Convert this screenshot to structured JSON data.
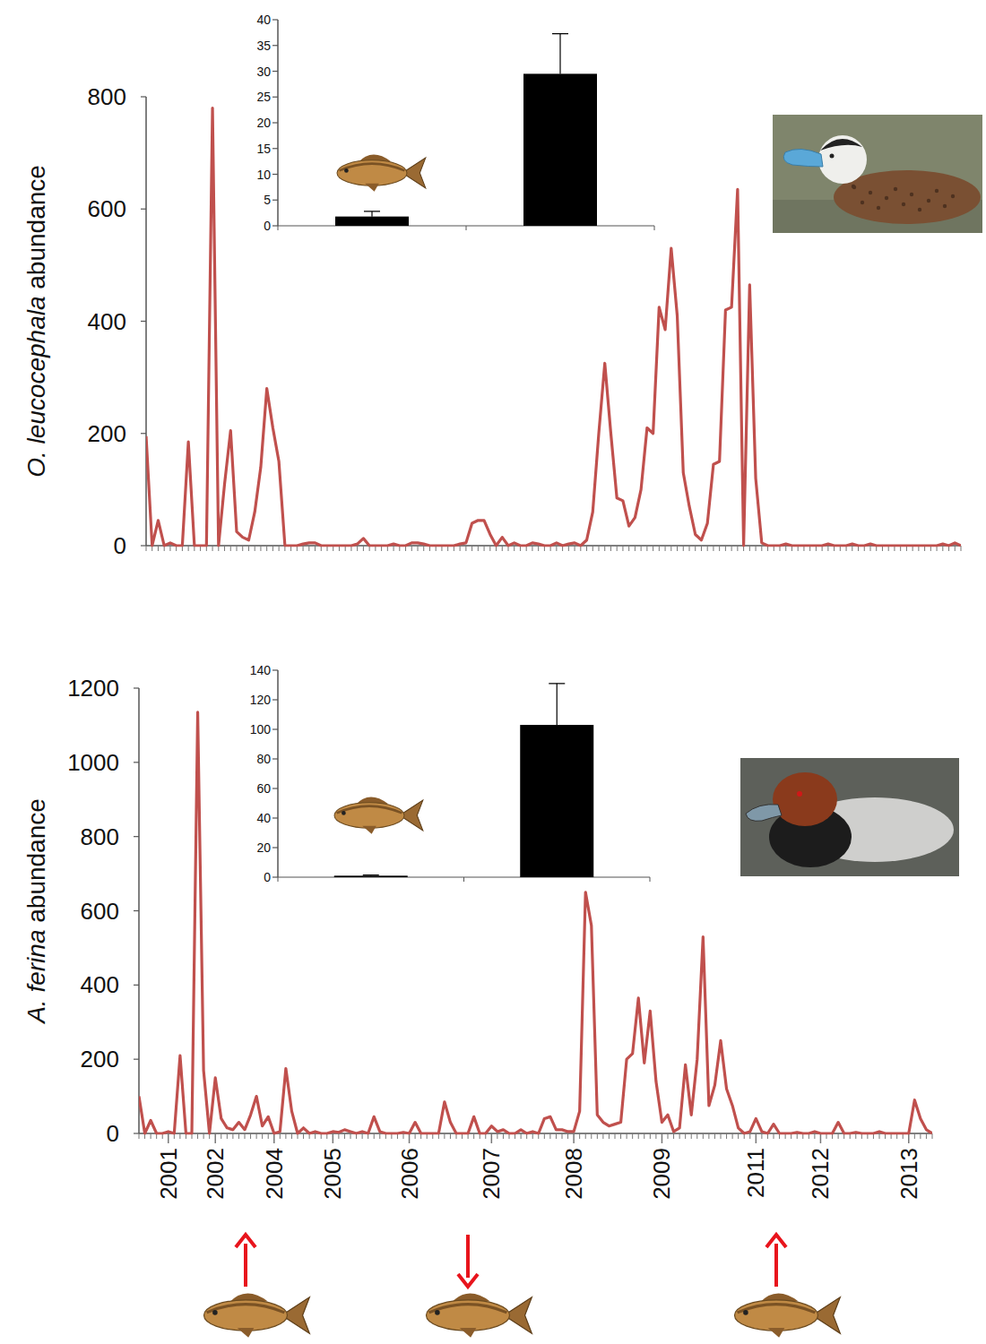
{
  "chart_data": [
    {
      "type": "line",
      "y_label": "O. leucocephala abundance",
      "color": "#c0504d",
      "tick_labels": "y",
      "ylim": [
        0,
        800
      ],
      "yticks": [
        0,
        200,
        400,
        600,
        800
      ],
      "categories": [
        null,
        null,
        null,
        null,
        null,
        null,
        null,
        null,
        null,
        null,
        null,
        null,
        null,
        null,
        null,
        null,
        null,
        null,
        null,
        null,
        null,
        null,
        null,
        null,
        null,
        null,
        null,
        null,
        null,
        null,
        null,
        null,
        null,
        null,
        null,
        null,
        null,
        null,
        null,
        null,
        null,
        null,
        null,
        null,
        null,
        null,
        null,
        null,
        null,
        null,
        null,
        null,
        null,
        null,
        null,
        null,
        null,
        null,
        null,
        null,
        null,
        null,
        null,
        null,
        null,
        null,
        null,
        null,
        null,
        null,
        null,
        null,
        null,
        null,
        null,
        null,
        null,
        null,
        null,
        null,
        null,
        null,
        null,
        null,
        null,
        null,
        null,
        null,
        null,
        null,
        null,
        null,
        null,
        null,
        null,
        null,
        null,
        null,
        null,
        null,
        null,
        null,
        null,
        null,
        null,
        null,
        null,
        null,
        null,
        null,
        null,
        null,
        null,
        null,
        null,
        null,
        null,
        null,
        null,
        null,
        null,
        null,
        null,
        null,
        null,
        null,
        null,
        null,
        null,
        null,
        null,
        null,
        null,
        null,
        null,
        null
      ],
      "values": [
        195,
        0,
        45,
        0,
        5,
        0,
        0,
        185,
        0,
        0,
        0,
        780,
        0,
        110,
        205,
        25,
        15,
        10,
        60,
        140,
        280,
        210,
        150,
        0,
        0,
        0,
        3,
        5,
        5,
        0,
        0,
        0,
        0,
        0,
        0,
        3,
        13,
        0,
        0,
        0,
        0,
        3,
        0,
        0,
        5,
        5,
        3,
        0,
        0,
        0,
        0,
        0,
        3,
        5,
        40,
        45,
        45,
        20,
        0,
        15,
        0,
        5,
        0,
        0,
        5,
        3,
        0,
        0,
        5,
        0,
        3,
        5,
        0,
        10,
        60,
        200,
        325,
        200,
        85,
        80,
        35,
        50,
        100,
        210,
        200,
        425,
        385,
        530,
        410,
        130,
        70,
        20,
        10,
        40,
        145,
        150,
        420,
        425,
        635,
        0,
        465,
        120,
        5,
        0,
        0,
        0,
        3,
        0,
        0,
        0,
        0,
        0,
        0,
        3,
        0,
        0,
        0,
        3,
        0,
        0,
        3,
        0,
        0,
        0,
        0,
        0,
        0,
        0,
        0,
        0,
        0,
        0,
        3,
        0,
        5,
        0
      ]
    },
    {
      "type": "bar",
      "color": "#000000",
      "tick_labels": "y",
      "categories": [
        null,
        null
      ],
      "values": [
        1.8,
        29.5
      ],
      "errors": [
        1.0,
        7.8
      ],
      "ylim": [
        0,
        40
      ],
      "yticks": [
        0,
        5,
        10,
        15,
        20,
        25,
        30,
        35,
        40
      ]
    },
    {
      "type": "line",
      "y_label": "A. ferina abundance",
      "color": "#c0504d",
      "ylim": [
        0,
        1200
      ],
      "yticks": [
        0,
        200,
        400,
        600,
        800,
        1000,
        1200
      ],
      "categories": [
        null,
        null,
        null,
        null,
        null,
        "2001",
        null,
        null,
        null,
        null,
        null,
        null,
        null,
        "2002",
        null,
        null,
        null,
        null,
        null,
        null,
        null,
        null,
        null,
        "2004",
        null,
        null,
        null,
        null,
        null,
        null,
        null,
        null,
        null,
        "2005",
        null,
        null,
        null,
        null,
        null,
        null,
        null,
        null,
        null,
        null,
        null,
        null,
        "2006",
        null,
        null,
        null,
        null,
        null,
        null,
        null,
        null,
        null,
        null,
        null,
        null,
        null,
        "2007",
        null,
        null,
        null,
        null,
        null,
        null,
        null,
        null,
        null,
        null,
        null,
        null,
        null,
        "2008",
        null,
        null,
        null,
        null,
        null,
        null,
        null,
        null,
        null,
        null,
        null,
        null,
        null,
        null,
        "2009",
        null,
        null,
        null,
        null,
        null,
        null,
        null,
        null,
        null,
        null,
        null,
        null,
        null,
        null,
        null,
        "2011",
        null,
        null,
        null,
        null,
        null,
        null,
        null,
        null,
        null,
        null,
        "2012",
        null,
        null,
        null,
        null,
        null,
        null,
        null,
        null,
        null,
        null,
        null,
        null,
        null,
        null,
        "2013",
        null,
        null,
        null,
        null
      ],
      "values": [
        100,
        0,
        35,
        0,
        0,
        5,
        0,
        210,
        0,
        0,
        1135,
        170,
        0,
        150,
        40,
        15,
        10,
        30,
        10,
        50,
        100,
        20,
        45,
        0,
        5,
        175,
        60,
        0,
        15,
        0,
        5,
        0,
        0,
        5,
        3,
        10,
        5,
        0,
        5,
        0,
        45,
        5,
        0,
        0,
        0,
        3,
        0,
        30,
        0,
        0,
        0,
        0,
        85,
        30,
        0,
        0,
        0,
        45,
        0,
        0,
        20,
        5,
        10,
        0,
        0,
        10,
        0,
        5,
        0,
        40,
        45,
        10,
        10,
        5,
        5,
        60,
        650,
        560,
        50,
        30,
        20,
        25,
        30,
        200,
        215,
        365,
        190,
        330,
        140,
        30,
        50,
        5,
        15,
        185,
        50,
        200,
        530,
        75,
        130,
        250,
        120,
        75,
        15,
        0,
        5,
        40,
        5,
        0,
        25,
        0,
        0,
        0,
        3,
        0,
        0,
        5,
        0,
        0,
        0,
        30,
        0,
        0,
        3,
        0,
        0,
        0,
        5,
        0,
        0,
        0,
        0,
        0,
        90,
        40,
        10,
        0
      ]
    },
    {
      "type": "bar",
      "color": "#000000",
      "tick_labels": "y",
      "categories": [
        null,
        null
      ],
      "values": [
        1.0,
        103
      ],
      "errors": [
        0.5,
        28
      ],
      "ylim": [
        0,
        140
      ],
      "yticks": [
        0,
        20,
        40,
        60,
        80,
        100,
        120,
        140
      ]
    }
  ]
}
